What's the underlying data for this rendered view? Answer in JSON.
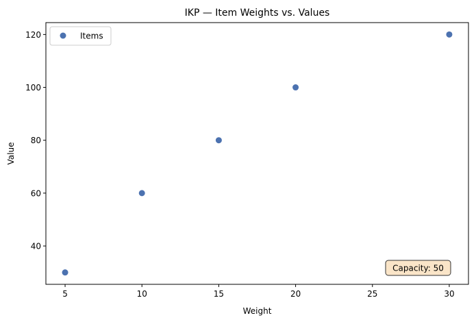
{
  "chart_data": {
    "type": "scatter",
    "title": "IKP — Item Weights vs. Values",
    "xlabel": "Weight",
    "ylabel": "Value",
    "xlim": [
      3.75,
      31.25
    ],
    "ylim": [
      25.5,
      124.5
    ],
    "xticks": [
      5,
      10,
      15,
      20,
      25,
      30
    ],
    "yticks": [
      40,
      60,
      80,
      100,
      120
    ],
    "grid": false,
    "legend_position": "upper-left",
    "series": [
      {
        "name": "Items",
        "color": "#4c72b0",
        "x": [
          5,
          10,
          15,
          20,
          30
        ],
        "y": [
          30,
          60,
          80,
          100,
          120
        ]
      }
    ],
    "annotations": [
      {
        "text": "Capacity: 50",
        "position": "bottom-right",
        "background": "#fae5c8"
      }
    ]
  }
}
